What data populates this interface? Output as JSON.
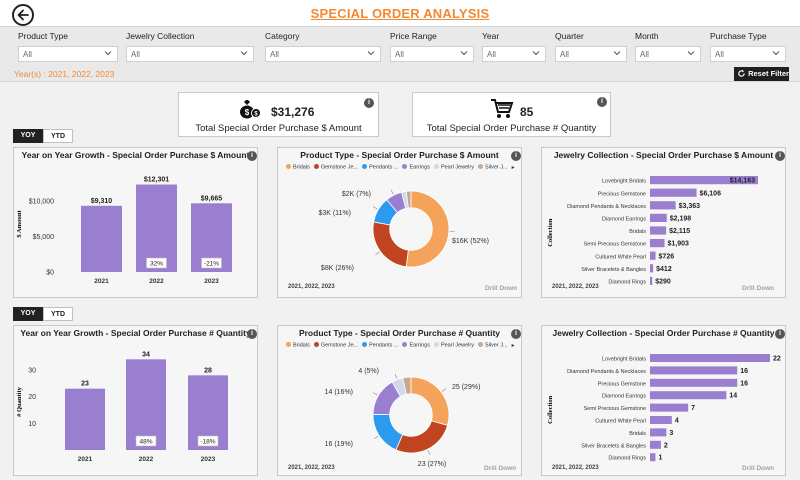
{
  "header": {
    "title": "SPECIAL ORDER ANALYSIS",
    "back_icon": "back-arrow-icon"
  },
  "filters": [
    {
      "label": "Product Type",
      "value": "All"
    },
    {
      "label": "Jewelry Collection",
      "value": "All"
    },
    {
      "label": "Category",
      "value": "All"
    },
    {
      "label": "Price Range",
      "value": "All"
    },
    {
      "label": "Year",
      "value": "All"
    },
    {
      "label": "Quarter",
      "value": "All"
    },
    {
      "label": "Month",
      "value": "All"
    },
    {
      "label": "Purchase Type",
      "value": "All"
    }
  ],
  "years_caption": "Year(s) : 2021, 2022, 2023",
  "reset_label": "Reset Filter",
  "kpis": {
    "amount": {
      "value": "$31,276",
      "caption": "Total Special Order Purchase $ Amount",
      "icon": "money-bag-icon"
    },
    "quantity": {
      "value": "85",
      "caption": "Total Special Order Purchase # Quantity",
      "icon": "shopping-cart-icon"
    }
  },
  "toggles": {
    "yoy": "YOY",
    "ytd": "YTD"
  },
  "info_glyph": "i",
  "footer_years": "2021, 2022, 2023",
  "drill_down": "Drill Down",
  "colors": {
    "accent": "#f28a34",
    "bar": "#9a7fd1",
    "pie": [
      "#f5a25b",
      "#c0441f",
      "#2c9bef",
      "#9a7fd1",
      "#ced9ea",
      "#c8a88e"
    ]
  },
  "chart_data": [
    {
      "id": "yoy_amount",
      "type": "bar",
      "title": "Year on Year Growth - Special Order Purchase $ Amount",
      "categories": [
        "2021",
        "2022",
        "2023"
      ],
      "values": [
        9310,
        12301,
        9665
      ],
      "value_labels": [
        "$9,310",
        "$12,301",
        "$9,665"
      ],
      "growth_labels": [
        "",
        "32%",
        "-21%"
      ],
      "ylabel": "$ Amount",
      "yticks": [
        0,
        5000,
        10000
      ],
      "ytick_labels": [
        "$0",
        "$5,000",
        "$10,000"
      ],
      "ylim": [
        0,
        13500
      ]
    },
    {
      "id": "type_amount",
      "type": "pie",
      "title": "Product Type - Special Order Purchase $ Amount",
      "legend": [
        "Bridals",
        "Gemstone Je...",
        "Pendants ...",
        "Earrings",
        "Pearl Jewelry",
        "Silver J..."
      ],
      "labels": [
        "Bridals",
        "Gemstone Jewelry",
        "Pendants",
        "Earrings",
        "Pearl Jewelry",
        "Silver Jewelry"
      ],
      "values": [
        52,
        26,
        11,
        7,
        2,
        2
      ],
      "data_labels": [
        "$16K (52%)",
        "$8K (26%)",
        "$3K (11%)",
        "$2K (7%)",
        "",
        ""
      ]
    },
    {
      "id": "coll_amount",
      "type": "bar",
      "orientation": "horizontal",
      "title": "Jewelry Collection - Special Order Purchase $ Amount",
      "ylabel": "Collection",
      "categories": [
        "Lovebright Bridals",
        "Precious Gemstone",
        "Diamond Pendants & Necklaces",
        "Diamond Earrings",
        "Bridals",
        "Semi Precious Gemstone",
        "Cultured White Pearl",
        "Silver Bracelets & Bangles",
        "Diamond Rings"
      ],
      "values": [
        14163,
        6106,
        3363,
        2198,
        2115,
        1903,
        726,
        412,
        290
      ],
      "value_labels": [
        "$14,163",
        "$6,106",
        "$3,363",
        "$2,198",
        "$2,115",
        "$1,903",
        "$726",
        "$412",
        "$290"
      ]
    },
    {
      "id": "yoy_qty",
      "type": "bar",
      "title": "Year on Year Growth - Special Order Purchase # Quantity",
      "categories": [
        "2021",
        "2022",
        "2023"
      ],
      "values": [
        23,
        34,
        28
      ],
      "value_labels": [
        "23",
        "34",
        "28"
      ],
      "growth_labels": [
        "",
        "48%",
        "-18%"
      ],
      "ylabel": "# Quantity",
      "yticks": [
        10,
        20,
        30
      ],
      "ytick_labels": [
        "10",
        "20",
        "30"
      ],
      "ylim": [
        0,
        36
      ]
    },
    {
      "id": "type_qty",
      "type": "pie",
      "title": "Product Type - Special Order Purchase # Quantity",
      "legend": [
        "Bridals",
        "Gemstone Je...",
        "Pendants ...",
        "Earrings",
        "Pearl Jewelry",
        "Silver J..."
      ],
      "labels": [
        "Bridals",
        "Gemstone Jewelry",
        "Pendants",
        "Earrings",
        "Pearl Jewelry",
        "Silver Jewelry"
      ],
      "values": [
        25,
        23,
        16,
        14,
        4,
        3
      ],
      "data_labels": [
        "25 (29%)",
        "23 (27%)",
        "16 (19%)",
        "14 (16%)",
        "4 (5%)",
        ""
      ]
    },
    {
      "id": "coll_qty",
      "type": "bar",
      "orientation": "horizontal",
      "title": "Jewelry Collection - Special Order Purchase # Quantity",
      "ylabel": "Collection",
      "categories": [
        "Lovebright Bridals",
        "Diamond Pendants & Necklaces",
        "Precious Gemstone",
        "Diamond Earrings",
        "Semi Precious Gemstone",
        "Cultured White Pearl",
        "Bridals",
        "Silver Bracelets & Bangles",
        "Diamond Rings"
      ],
      "values": [
        22,
        16,
        16,
        14,
        7,
        4,
        3,
        2,
        1
      ],
      "value_labels": [
        "22",
        "16",
        "16",
        "14",
        "7",
        "4",
        "3",
        "2",
        "1"
      ]
    }
  ]
}
